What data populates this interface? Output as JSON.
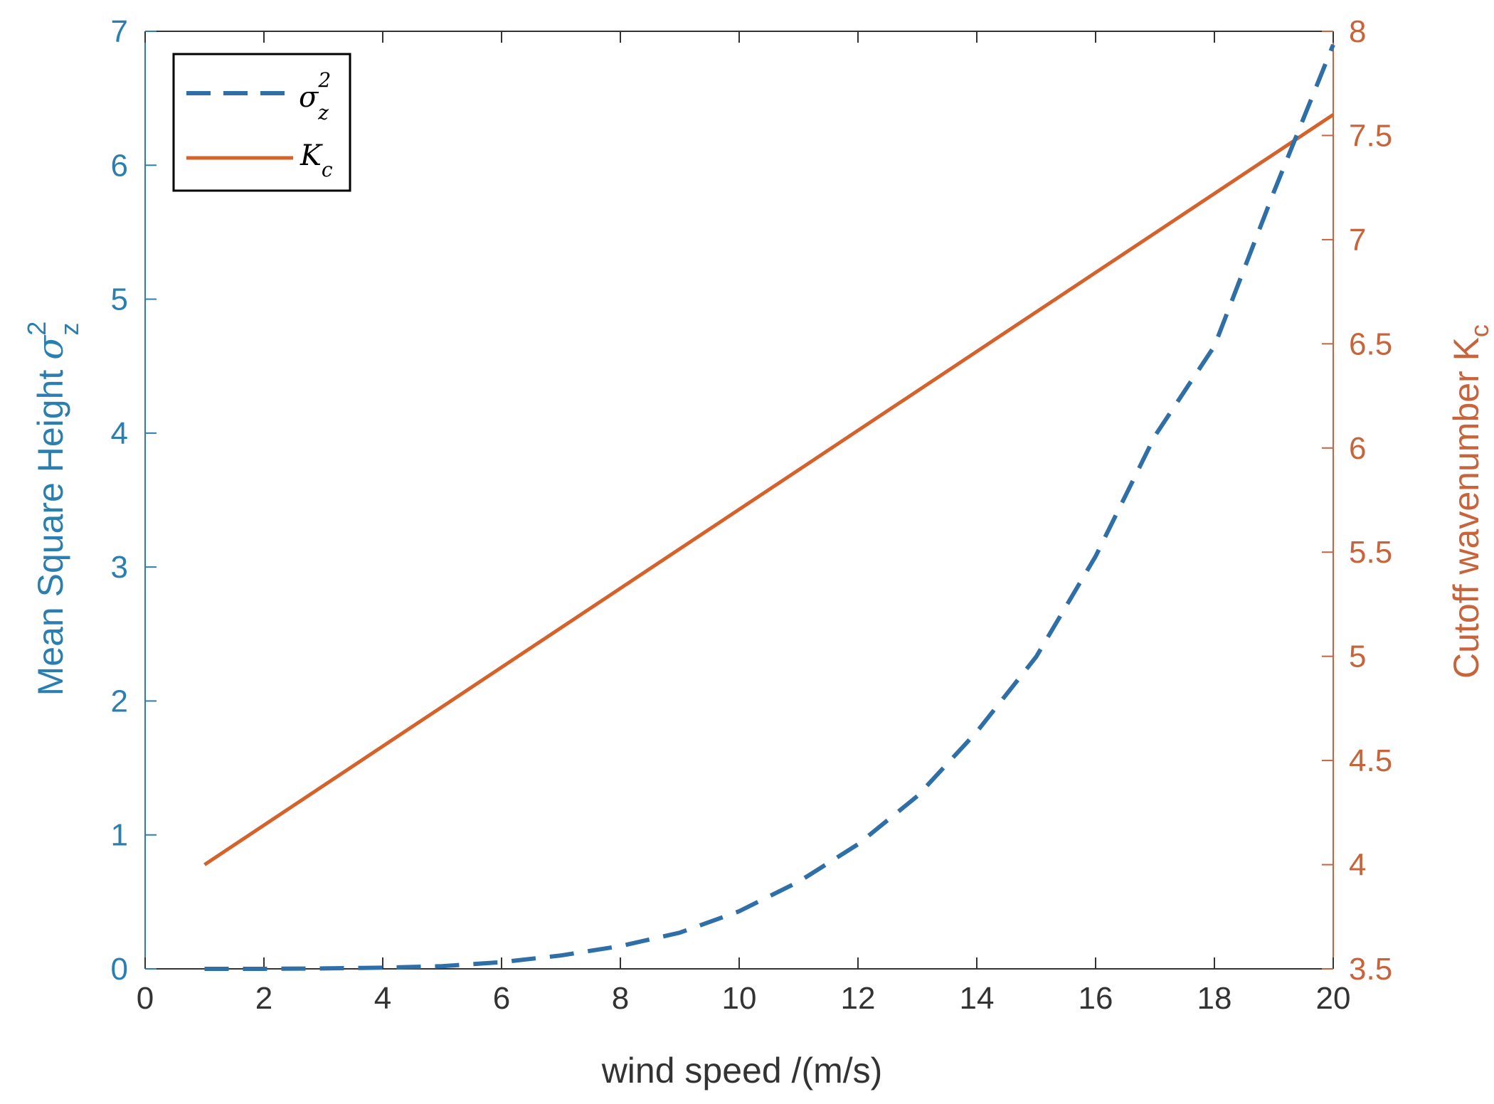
{
  "colors": {
    "left_axis": "#2a7fb0",
    "right_axis": "#c8643c",
    "sigma_line": "#2f6fa8",
    "kc_line": "#d4622a",
    "frame": "#333333",
    "bottom_axis": "#333333"
  },
  "chart_data": {
    "type": "line",
    "xlabel": "wind speed /(m/s)",
    "ylabel_left": {
      "prefix": "Mean Square Height ",
      "symbol": "σ",
      "sub": "z",
      "sup": "2"
    },
    "ylabel_right": {
      "prefix": "Cutoff  wavenumber K",
      "sub": "c"
    },
    "xlim": [
      0,
      20
    ],
    "ylim_left": [
      0,
      7
    ],
    "ylim_right": [
      3.5,
      8
    ],
    "xticks": [
      "0",
      "2",
      "4",
      "6",
      "8",
      "10",
      "12",
      "14",
      "16",
      "18",
      "20"
    ],
    "yticks_left": [
      "0",
      "1",
      "2",
      "3",
      "4",
      "5",
      "6",
      "7"
    ],
    "yticks_right": [
      "3.5",
      "4",
      "4.5",
      "5",
      "5.5",
      "6",
      "6.5",
      "7",
      "7.5",
      "8"
    ],
    "legend": {
      "position": "top-left",
      "entries": [
        {
          "symbol": "σ",
          "sub": "z",
          "sup": "2",
          "style": "dashed"
        },
        {
          "symbol": "K",
          "sub": "c",
          "style": "solid"
        }
      ]
    },
    "series": [
      {
        "axis": "left",
        "style": "dashed",
        "x": [
          1,
          2,
          3,
          4,
          5,
          6,
          7,
          8,
          9,
          10,
          11,
          12,
          13,
          14,
          15,
          16,
          17,
          18,
          19,
          20
        ],
        "y": [
          0.0,
          0.0003,
          0.003,
          0.009,
          0.02,
          0.05,
          0.1,
          0.17,
          0.27,
          0.43,
          0.65,
          0.93,
          1.29,
          1.77,
          2.33,
          3.08,
          3.98,
          4.65,
          5.8,
          6.9
        ]
      },
      {
        "axis": "right",
        "style": "solid",
        "x": [
          1,
          20
        ],
        "y": [
          4.0,
          7.6
        ]
      }
    ]
  }
}
